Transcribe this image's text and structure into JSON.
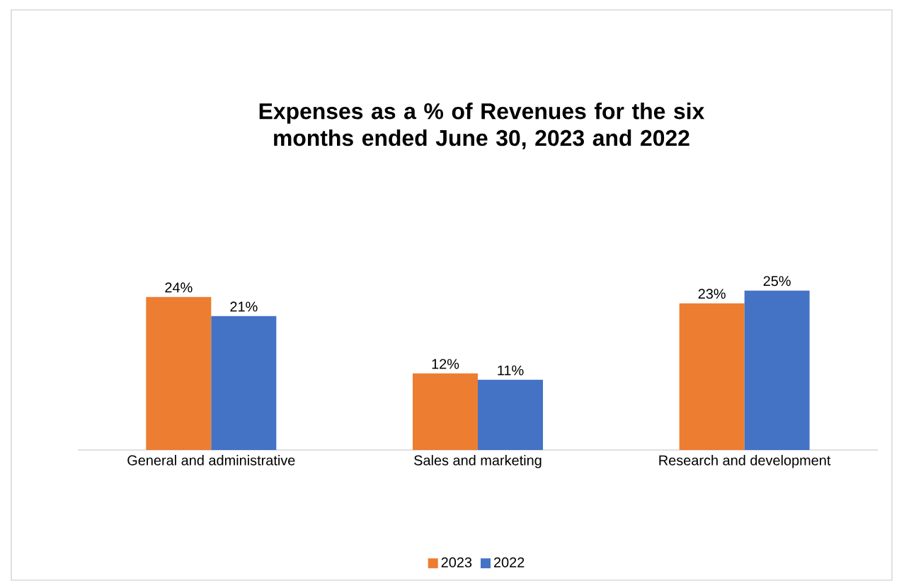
{
  "chart_data": {
    "type": "bar",
    "title": "Expenses as a % of Revenues for the six months ended June 30, 2023 and 2022",
    "categories": [
      "General and administrative",
      "Sales and marketing",
      "Research and development"
    ],
    "series": [
      {
        "name": "2023",
        "color": "#ed7d31",
        "values": [
          24,
          12,
          23
        ],
        "value_labels": [
          "24%",
          "12%",
          "23%"
        ]
      },
      {
        "name": "2022",
        "color": "#4472c4",
        "values": [
          21,
          11,
          25
        ],
        "value_labels": [
          "21%",
          "11%",
          "25%"
        ]
      }
    ],
    "legend": "bottom"
  }
}
